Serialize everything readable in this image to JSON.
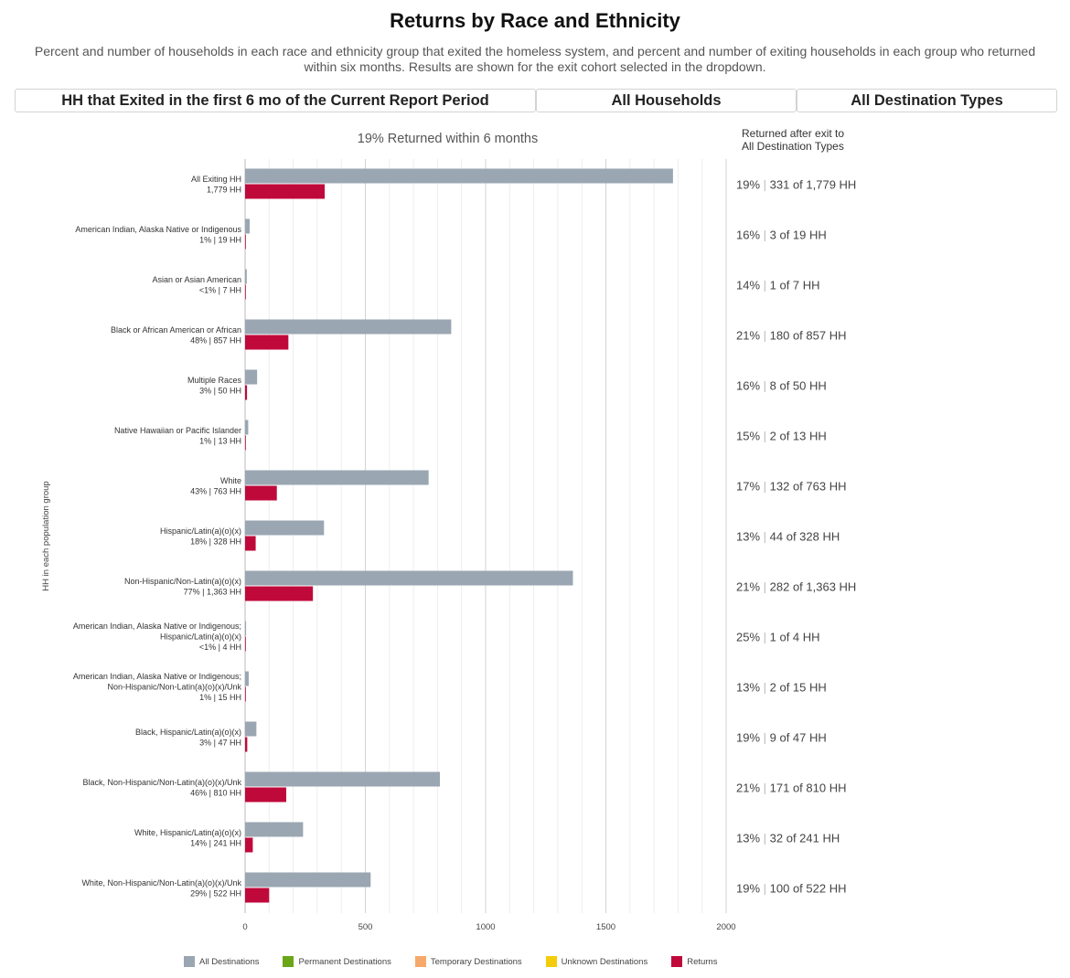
{
  "header": {
    "title": "Returns by Race and Ethnicity",
    "subtitle": "Percent and number of households in each race and ethnicity group that exited the homeless system, and percent and number of exiting households in each group who returned within six months. Results are shown for the exit cohort selected in the dropdown."
  },
  "filters": {
    "cohort": "HH that Exited in the first 6 mo of the Current Report Period",
    "household_type": "All Households",
    "destination": "All Destination Types"
  },
  "returns_header": {
    "line1": "Returned after exit to",
    "line2": "All Destination Types"
  },
  "legend": [
    {
      "label": "All Destinations",
      "color": "#9aa6b2"
    },
    {
      "label": "Permanent Destinations",
      "color": "#6aa617"
    },
    {
      "label": "Temporary Destinations",
      "color": "#f6a96a"
    },
    {
      "label": "Unknown Destinations",
      "color": "#f5cc0b"
    },
    {
      "label": "Returns",
      "color": "#c0093b"
    }
  ],
  "chart_data": {
    "type": "bar",
    "orientation": "horizontal",
    "title": "19% Returned within 6 months",
    "ylabel": "HH in each population group",
    "xlabel": "",
    "xlim": [
      0,
      2000
    ],
    "xticks": [
      0,
      500,
      1000,
      1500,
      2000
    ],
    "grid": true,
    "legend_position": "bottom",
    "categories": [
      {
        "name": [
          "All Exiting HH"
        ],
        "sub": "1,779 HH",
        "returns_text": "19% | 331 of 1,779 HH"
      },
      {
        "name": [
          "American Indian, Alaska Native or Indigenous"
        ],
        "sub": "1% | 19 HH",
        "returns_text": "16% | 3 of 19 HH"
      },
      {
        "name": [
          "Asian or Asian American"
        ],
        "sub": "<1% | 7 HH",
        "returns_text": "14% | 1 of 7 HH"
      },
      {
        "name": [
          "Black or African American or African"
        ],
        "sub": "48% | 857 HH",
        "returns_text": "21% | 180 of 857 HH"
      },
      {
        "name": [
          "Multiple Races"
        ],
        "sub": "3% | 50 HH",
        "returns_text": "16% | 8 of 50 HH"
      },
      {
        "name": [
          "Native Hawaiian or Pacific Islander"
        ],
        "sub": "1% | 13 HH",
        "returns_text": "15% | 2 of 13 HH"
      },
      {
        "name": [
          "White"
        ],
        "sub": "43% | 763 HH",
        "returns_text": "17% | 132 of 763 HH"
      },
      {
        "name": [
          "Hispanic/Latin(a)(o)(x)"
        ],
        "sub": "18% | 328 HH",
        "returns_text": "13% | 44 of 328 HH"
      },
      {
        "name": [
          "Non-Hispanic/Non-Latin(a)(o)(x)"
        ],
        "sub": "77% | 1,363 HH",
        "returns_text": "21% | 282 of 1,363 HH"
      },
      {
        "name": [
          "American Indian, Alaska Native or Indigenous;",
          "Hispanic/Latin(a)(o)(x)"
        ],
        "sub": "<1% | 4 HH",
        "returns_text": "25% | 1 of 4 HH"
      },
      {
        "name": [
          "American Indian, Alaska Native or Indigenous;",
          "Non-Hispanic/Non-Latin(a)(o)(x)/Unk"
        ],
        "sub": "1% | 15 HH",
        "returns_text": "13% | 2 of 15 HH"
      },
      {
        "name": [
          "Black, Hispanic/Latin(a)(o)(x)"
        ],
        "sub": "3% | 47 HH",
        "returns_text": "19% | 9 of 47 HH"
      },
      {
        "name": [
          "Black, Non-Hispanic/Non-Latin(a)(o)(x)/Unk"
        ],
        "sub": "46% | 810 HH",
        "returns_text": "21% | 171 of 810 HH"
      },
      {
        "name": [
          "White, Hispanic/Latin(a)(o)(x)"
        ],
        "sub": "14% | 241 HH",
        "returns_text": "13% | 32 of 241 HH"
      },
      {
        "name": [
          "White, Non-Hispanic/Non-Latin(a)(o)(x)/Unk"
        ],
        "sub": "29% | 522 HH",
        "returns_text": "19% | 100 of 522 HH"
      }
    ],
    "series": [
      {
        "name": "All Destinations",
        "color": "#9aa6b2",
        "values": [
          1779,
          19,
          7,
          857,
          50,
          13,
          763,
          328,
          1363,
          4,
          15,
          47,
          810,
          241,
          522
        ]
      },
      {
        "name": "Returns",
        "color": "#c0093b",
        "values": [
          331,
          3,
          1,
          180,
          8,
          2,
          132,
          44,
          282,
          1,
          2,
          9,
          171,
          32,
          100
        ]
      }
    ]
  }
}
